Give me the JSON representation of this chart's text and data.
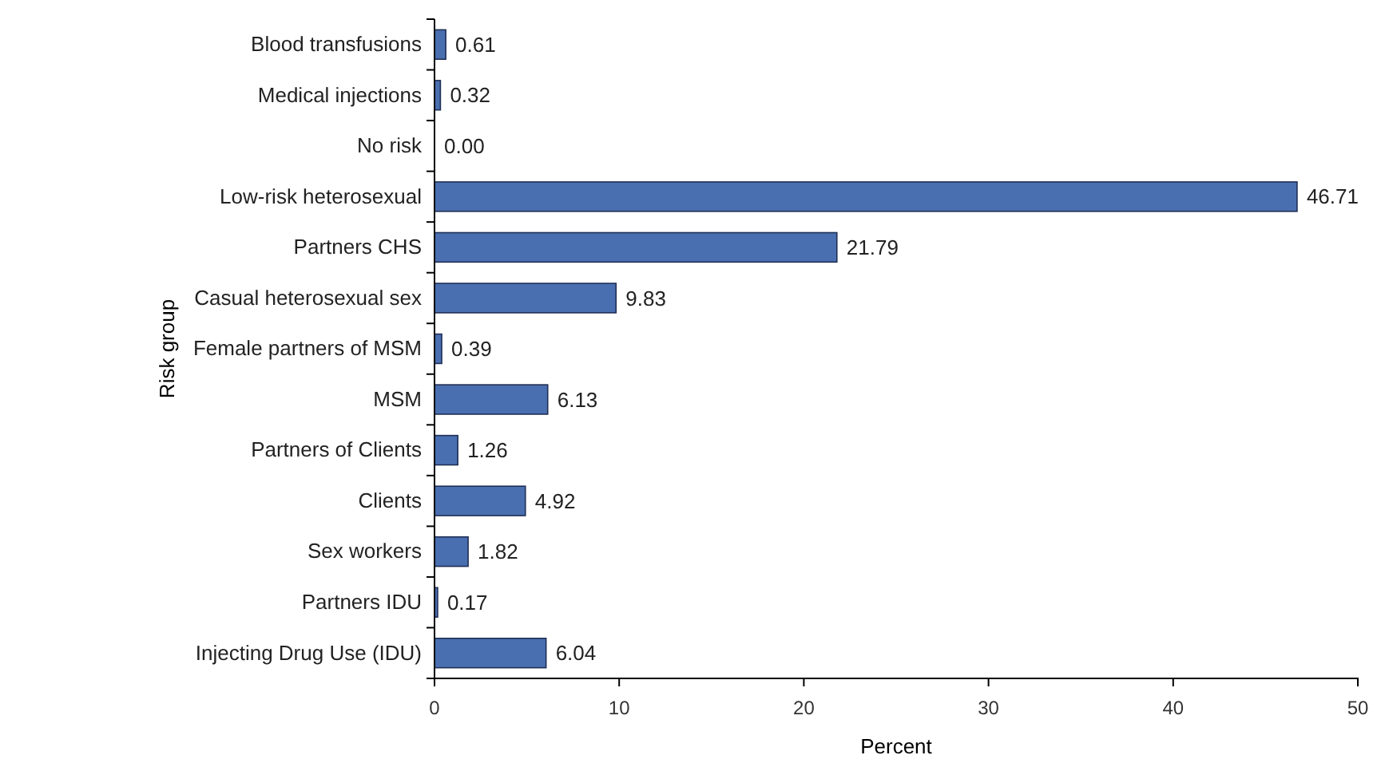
{
  "chart_data": {
    "type": "bar",
    "orientation": "horizontal",
    "xlabel": "Percent",
    "ylabel": "Risk group",
    "categories": [
      "Blood transfusions",
      "Medical injections",
      "No risk",
      "Low-risk heterosexual",
      "Partners CHS",
      "Casual heterosexual sex",
      "Female partners of MSM",
      "MSM",
      "Partners of Clients",
      "Clients",
      "Sex workers",
      "Partners IDU",
      "Injecting Drug Use (IDU)"
    ],
    "values": [
      0.61,
      0.32,
      0.0,
      46.71,
      21.79,
      9.83,
      0.39,
      6.13,
      1.26,
      4.92,
      1.82,
      0.17,
      6.04
    ],
    "value_labels": [
      "0.61",
      "0.32",
      "0.00",
      "46.71",
      "21.79",
      "9.83",
      "0.39",
      "6.13",
      "1.26",
      "4.92",
      "1.82",
      "0.17",
      "6.04"
    ],
    "color": "#4a6fb0",
    "xlim": [
      0,
      50
    ],
    "xticks": [
      0,
      10,
      20,
      30,
      40,
      50
    ],
    "grid": false
  }
}
